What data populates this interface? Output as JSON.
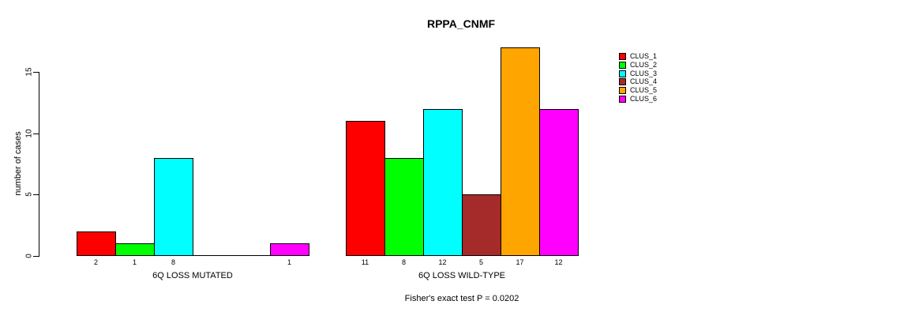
{
  "title": "RPPA_CNMF",
  "footer": "Fisher's exact test P = 0.0202",
  "y_axis": {
    "label": "number of cases",
    "ticks": [
      "0",
      "5",
      "10",
      "15"
    ]
  },
  "chart_data": {
    "type": "bar",
    "title": "RPPA_CNMF",
    "xlabel": "",
    "ylabel": "number of cases",
    "ylim": [
      0,
      17
    ],
    "yticks": [
      0,
      5,
      10,
      15
    ],
    "grid": false,
    "legend_position": "top-right",
    "bar_labels_shown": true,
    "groups": [
      "6Q LOSS MUTATED",
      "6Q LOSS WILD-TYPE"
    ],
    "series": [
      {
        "name": "CLUS_1",
        "color": "#FF0000",
        "values": [
          2,
          11
        ]
      },
      {
        "name": "CLUS_2",
        "color": "#00FF00",
        "values": [
          1,
          8
        ]
      },
      {
        "name": "CLUS_3",
        "color": "#00FFFF",
        "values": [
          8,
          12
        ]
      },
      {
        "name": "CLUS_4",
        "color": "#A52A2A",
        "values": [
          0,
          5
        ]
      },
      {
        "name": "CLUS_5",
        "color": "#FFA500",
        "values": [
          0,
          17
        ]
      },
      {
        "name": "CLUS_6",
        "color": "#FF00FF",
        "values": [
          1,
          12
        ]
      }
    ],
    "annotation": "Fisher's exact test P = 0.0202"
  }
}
